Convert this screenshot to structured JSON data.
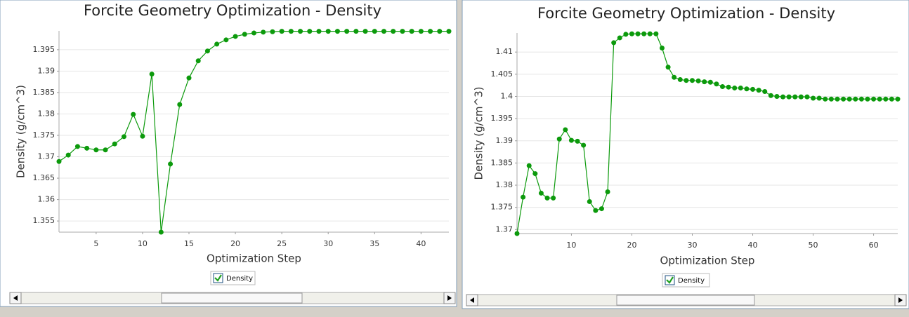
{
  "chart_data": [
    {
      "type": "line",
      "title": "Forcite Geometry Optimization - Density",
      "x_label": "Optimization Step",
      "y_label": "Density (g/cm^3)",
      "x": [
        1,
        2,
        3,
        4,
        5,
        6,
        7,
        8,
        9,
        10,
        11,
        12,
        13,
        14,
        15,
        16,
        17,
        18,
        19,
        20,
        21,
        22,
        23,
        24,
        25,
        26,
        27,
        28,
        29,
        30,
        31,
        32,
        33,
        34,
        35,
        36,
        37,
        38,
        39,
        40,
        41,
        42,
        43
      ],
      "series": [
        {
          "name": "Density",
          "color": "#0c9a0c",
          "values": [
            1.3689,
            1.3704,
            1.3724,
            1.372,
            1.3716,
            1.3716,
            1.373,
            1.3747,
            1.3799,
            1.3748,
            1.3893,
            1.3524,
            1.3683,
            1.3822,
            1.3884,
            1.3924,
            1.3947,
            1.3963,
            1.3973,
            1.3981,
            1.3986,
            1.3989,
            1.3991,
            1.3992,
            1.3993,
            1.3993,
            1.3993,
            1.3993,
            1.3993,
            1.3993,
            1.3993,
            1.3993,
            1.3993,
            1.3993,
            1.3993,
            1.3993,
            1.3993,
            1.3993,
            1.3993,
            1.3993,
            1.3993,
            1.3993,
            1.3993
          ]
        }
      ],
      "xlim": [
        1,
        43
      ],
      "xticks": [
        5,
        10,
        15,
        20,
        25,
        30,
        35,
        40
      ],
      "ylim": [
        1.3524,
        1.3994
      ],
      "yticks": [
        1.355,
        1.36,
        1.365,
        1.37,
        1.375,
        1.38,
        1.385,
        1.39,
        1.395
      ],
      "grid": true
    },
    {
      "type": "line",
      "title": "Forcite Geometry Optimization - Density",
      "x_label": "Optimization Step",
      "y_label": "Density (g/cm^3)",
      "x": [
        1,
        2,
        3,
        4,
        5,
        6,
        7,
        8,
        9,
        10,
        11,
        12,
        13,
        14,
        15,
        16,
        17,
        18,
        19,
        20,
        21,
        22,
        23,
        24,
        25,
        26,
        27,
        28,
        29,
        30,
        31,
        32,
        33,
        34,
        35,
        36,
        37,
        38,
        39,
        40,
        41,
        42,
        43,
        44,
        45,
        46,
        47,
        48,
        49,
        50,
        51,
        52,
        53,
        54,
        55,
        56,
        57,
        58,
        59,
        60,
        61,
        62,
        63,
        64
      ],
      "series": [
        {
          "name": "Density",
          "color": "#0c9a0c",
          "values": [
            1.3691,
            1.3773,
            1.3844,
            1.3826,
            1.3782,
            1.3771,
            1.3771,
            1.3904,
            1.3925,
            1.3901,
            1.3899,
            1.389,
            1.3763,
            1.3743,
            1.3747,
            1.3785,
            1.4121,
            1.4132,
            1.414,
            1.4141,
            1.4141,
            1.4141,
            1.4141,
            1.4141,
            1.4109,
            1.4066,
            1.4043,
            1.4038,
            1.4036,
            1.4036,
            1.4035,
            1.4033,
            1.4032,
            1.4028,
            1.4022,
            1.4021,
            1.4019,
            1.4019,
            1.4017,
            1.4016,
            1.4014,
            1.4011,
            1.4002,
            1.4,
            1.3999,
            1.3999,
            1.3999,
            1.3999,
            1.3999,
            1.3996,
            1.3996,
            1.3994,
            1.3994,
            1.3994,
            1.3994,
            1.3994,
            1.3994,
            1.3994,
            1.3994,
            1.3994,
            1.3994,
            1.3994,
            1.3994,
            1.3994
          ]
        }
      ],
      "xlim": [
        1,
        64
      ],
      "xticks": [
        10,
        20,
        30,
        40,
        50,
        60
      ],
      "ylim": [
        1.3691,
        1.4143
      ],
      "yticks": [
        1.37,
        1.375,
        1.38,
        1.385,
        1.39,
        1.395,
        1.4,
        1.405,
        1.41
      ],
      "grid": true
    }
  ]
}
